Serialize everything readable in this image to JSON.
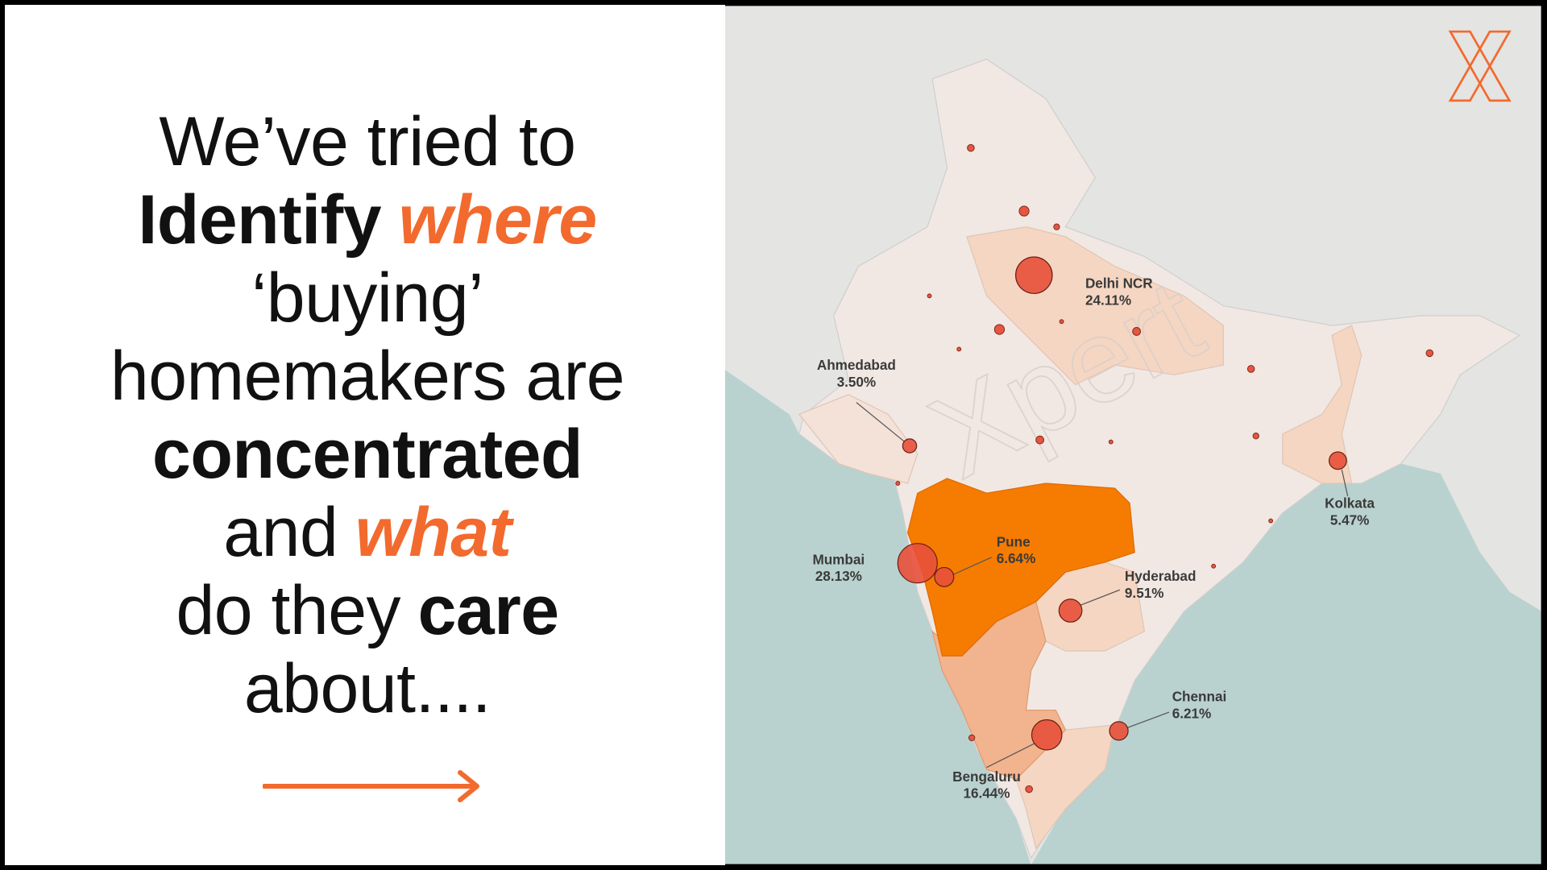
{
  "headline": [
    [
      "We’ve tried to"
    ],
    [
      "Identify",
      "where"
    ],
    [
      "‘buying’"
    ],
    [
      "homemakers are"
    ],
    [
      "concentrated"
    ],
    [
      "and",
      "what"
    ],
    [
      "do they",
      "care"
    ],
    [
      "about...."
    ]
  ],
  "watermark": "Xpert",
  "cities": [
    {
      "name": "Delhi NCR",
      "share": 24.11,
      "share_label": "24.11%"
    },
    {
      "name": "Ahmedabad",
      "share": 3.5,
      "share_label": "3.50%"
    },
    {
      "name": "Mumbai",
      "share": 28.13,
      "share_label": "28.13%"
    },
    {
      "name": "Pune",
      "share": 6.64,
      "share_label": "6.64%"
    },
    {
      "name": "Hyderabad",
      "share": 9.51,
      "share_label": "9.51%"
    },
    {
      "name": "Bengaluru",
      "share": 16.44,
      "share_label": "16.44%"
    },
    {
      "name": "Chennai",
      "share": 6.21,
      "share_label": "6.21%"
    },
    {
      "name": "Kolkata",
      "share": 5.47,
      "share_label": "5.47%"
    }
  ]
}
